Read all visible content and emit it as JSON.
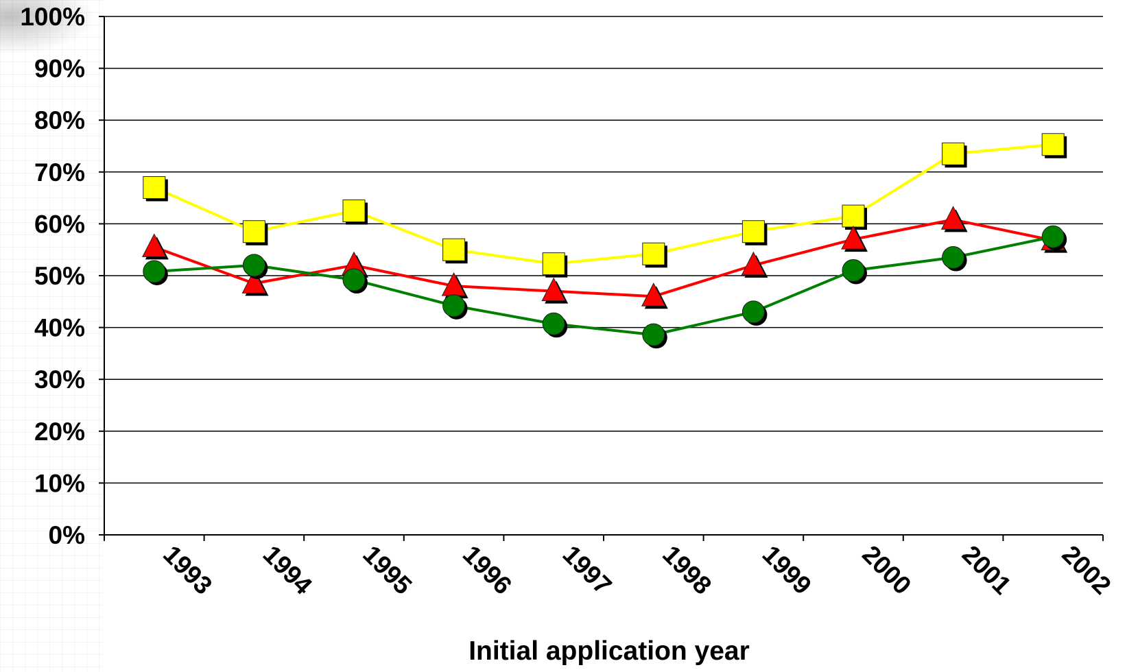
{
  "chart_data": {
    "type": "line",
    "title": "",
    "xlabel": "Initial application year",
    "ylabel": "",
    "categories": [
      "1993",
      "1994",
      "1995",
      "1996",
      "1997",
      "1998",
      "1999",
      "2000",
      "2001",
      "2002"
    ],
    "yticks": [
      "0%",
      "10%",
      "20%",
      "30%",
      "40%",
      "50%",
      "60%",
      "70%",
      "80%",
      "90%",
      "100%"
    ],
    "ylim": [
      0,
      100
    ],
    "grid": true,
    "legend": "none",
    "series": [
      {
        "color": "#FFFF00",
        "marker": "square",
        "values": [
          67,
          58.5,
          62.5,
          55,
          52.3,
          54.2,
          58.5,
          61.5,
          73.5,
          75.3
        ]
      },
      {
        "color": "#FF0000",
        "marker": "triangle",
        "values": [
          55.5,
          48.5,
          52,
          48,
          47,
          46,
          52,
          57,
          60.8,
          56.8
        ]
      },
      {
        "color": "#008000",
        "marker": "circle",
        "values": [
          50.8,
          52,
          49.2,
          44.2,
          40.7,
          38.6,
          43,
          51,
          53.5,
          57.5
        ]
      }
    ]
  }
}
